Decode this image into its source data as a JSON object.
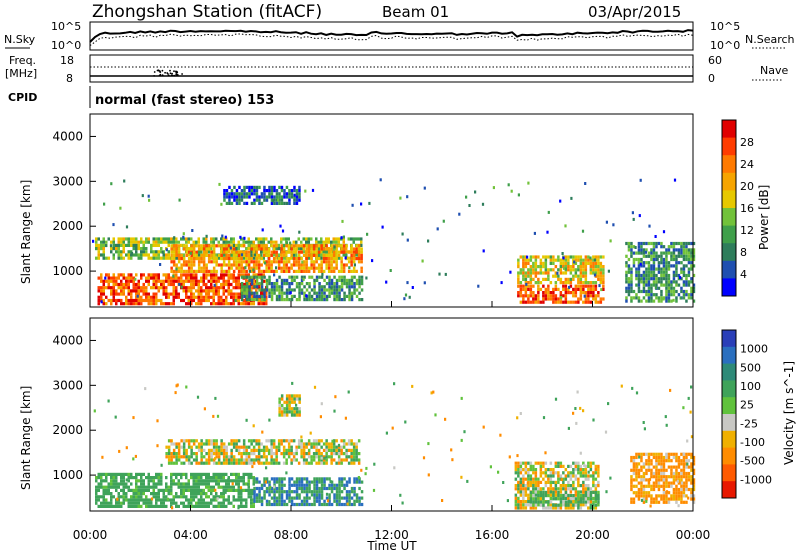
{
  "header": {
    "station": "Zhongshan Station (fitACF)",
    "beam": "Beam 01",
    "date": "03/Apr/2015"
  },
  "panel_labels": {
    "nsky": "N.Sky",
    "nsearch": "N.Search",
    "freq_line1": "Freq.",
    "freq_line2": "[MHz]",
    "nave": "Nave",
    "cpid": "CPID",
    "cpid_value": "normal (fast stereo) 153"
  },
  "noise_axis": {
    "left_top": "10^5",
    "left_bottom": "10^0",
    "right_top": "10^5",
    "right_bottom": "10^0"
  },
  "freq_axis": {
    "left_top": "18",
    "left_bottom": "8",
    "right_top": "60",
    "right_bottom": "0"
  },
  "range_ticks": [
    "4000",
    "3000",
    "2000",
    "1000"
  ],
  "time_ticks": [
    "00:00",
    "04:00",
    "08:00",
    "12:00",
    "16:00",
    "20:00",
    "00:00"
  ],
  "xlabel": "Time UT",
  "ylabel_power": "Slant Range [km]",
  "ylabel_velocity": "Slant Range [km]",
  "power_colorbar": {
    "label": "Power [dB]",
    "ticks": [
      "28",
      "24",
      "20",
      "16",
      "12",
      "8",
      "4"
    ],
    "colors": [
      "#0000ff",
      "#1f4fb0",
      "#2e7d5b",
      "#3f9f4a",
      "#72c23a",
      "#e6c800",
      "#f6a400",
      "#ff7a00",
      "#ff3c00",
      "#e00000"
    ]
  },
  "velocity_colorbar": {
    "label": "Velocity [m s^-1]",
    "ticks": [
      "1000",
      "500",
      "100",
      "25",
      "-25",
      "-100",
      "-500",
      "-1000"
    ],
    "colors": [
      "#2a3fb8",
      "#2a6fbf",
      "#2e8a78",
      "#3fa35a",
      "#60c23c",
      "#c8c8c4",
      "#f0b000",
      "#ff8c00",
      "#ff5a00",
      "#e81800"
    ]
  },
  "chart_data": [
    {
      "type": "heatmap",
      "title": "Power",
      "xlabel": "Time UT",
      "ylabel": "Slant Range [km]",
      "xlim_hours": [
        0,
        24
      ],
      "ylim": [
        200,
        4500
      ],
      "colorbar_range_db": [
        0,
        32
      ],
      "regions": [
        {
          "t0": 0.2,
          "t1": 10.8,
          "r0": 1300,
          "r1": 1750,
          "value": 14
        },
        {
          "t0": 0.3,
          "t1": 7.0,
          "r0": 300,
          "r1": 950,
          "value": 26
        },
        {
          "t0": 3.2,
          "t1": 10.8,
          "r0": 1000,
          "r1": 1600,
          "value": 22
        },
        {
          "t0": 6.0,
          "t1": 10.8,
          "r0": 400,
          "r1": 900,
          "value": 10
        },
        {
          "t0": 5.3,
          "t1": 8.3,
          "r0": 2500,
          "r1": 2900,
          "value": 6
        },
        {
          "t0": 17.0,
          "t1": 20.4,
          "r0": 300,
          "r1": 700,
          "value": 26
        },
        {
          "t0": 17.0,
          "t1": 20.4,
          "r0": 750,
          "r1": 1350,
          "value": 18
        },
        {
          "t0": 21.3,
          "t1": 24.0,
          "r0": 300,
          "r1": 1650,
          "value": 10
        }
      ]
    },
    {
      "type": "heatmap",
      "title": "Velocity",
      "xlabel": "Time UT",
      "ylabel": "Slant Range [km]",
      "xlim_hours": [
        0,
        24
      ],
      "ylim": [
        200,
        4500
      ],
      "colorbar_range_ms": [
        -1000,
        1000
      ],
      "regions": [
        {
          "t0": 0.2,
          "t1": 6.5,
          "r0": 300,
          "r1": 1050,
          "value": 200
        },
        {
          "t0": 3.0,
          "t1": 10.7,
          "r0": 1250,
          "r1": 1800,
          "value": 0
        },
        {
          "t0": 6.5,
          "t1": 10.8,
          "r0": 350,
          "r1": 950,
          "value": 500
        },
        {
          "t0": 7.5,
          "t1": 8.3,
          "r0": 2350,
          "r1": 2800,
          "value": 0
        },
        {
          "t0": 16.9,
          "t1": 20.2,
          "r0": 300,
          "r1": 1300,
          "value": 0
        },
        {
          "t0": 17.5,
          "t1": 20.2,
          "r0": 300,
          "r1": 650,
          "value": 150
        },
        {
          "t0": 21.5,
          "t1": 24.0,
          "r0": 400,
          "r1": 1500,
          "value": -150
        }
      ]
    }
  ]
}
